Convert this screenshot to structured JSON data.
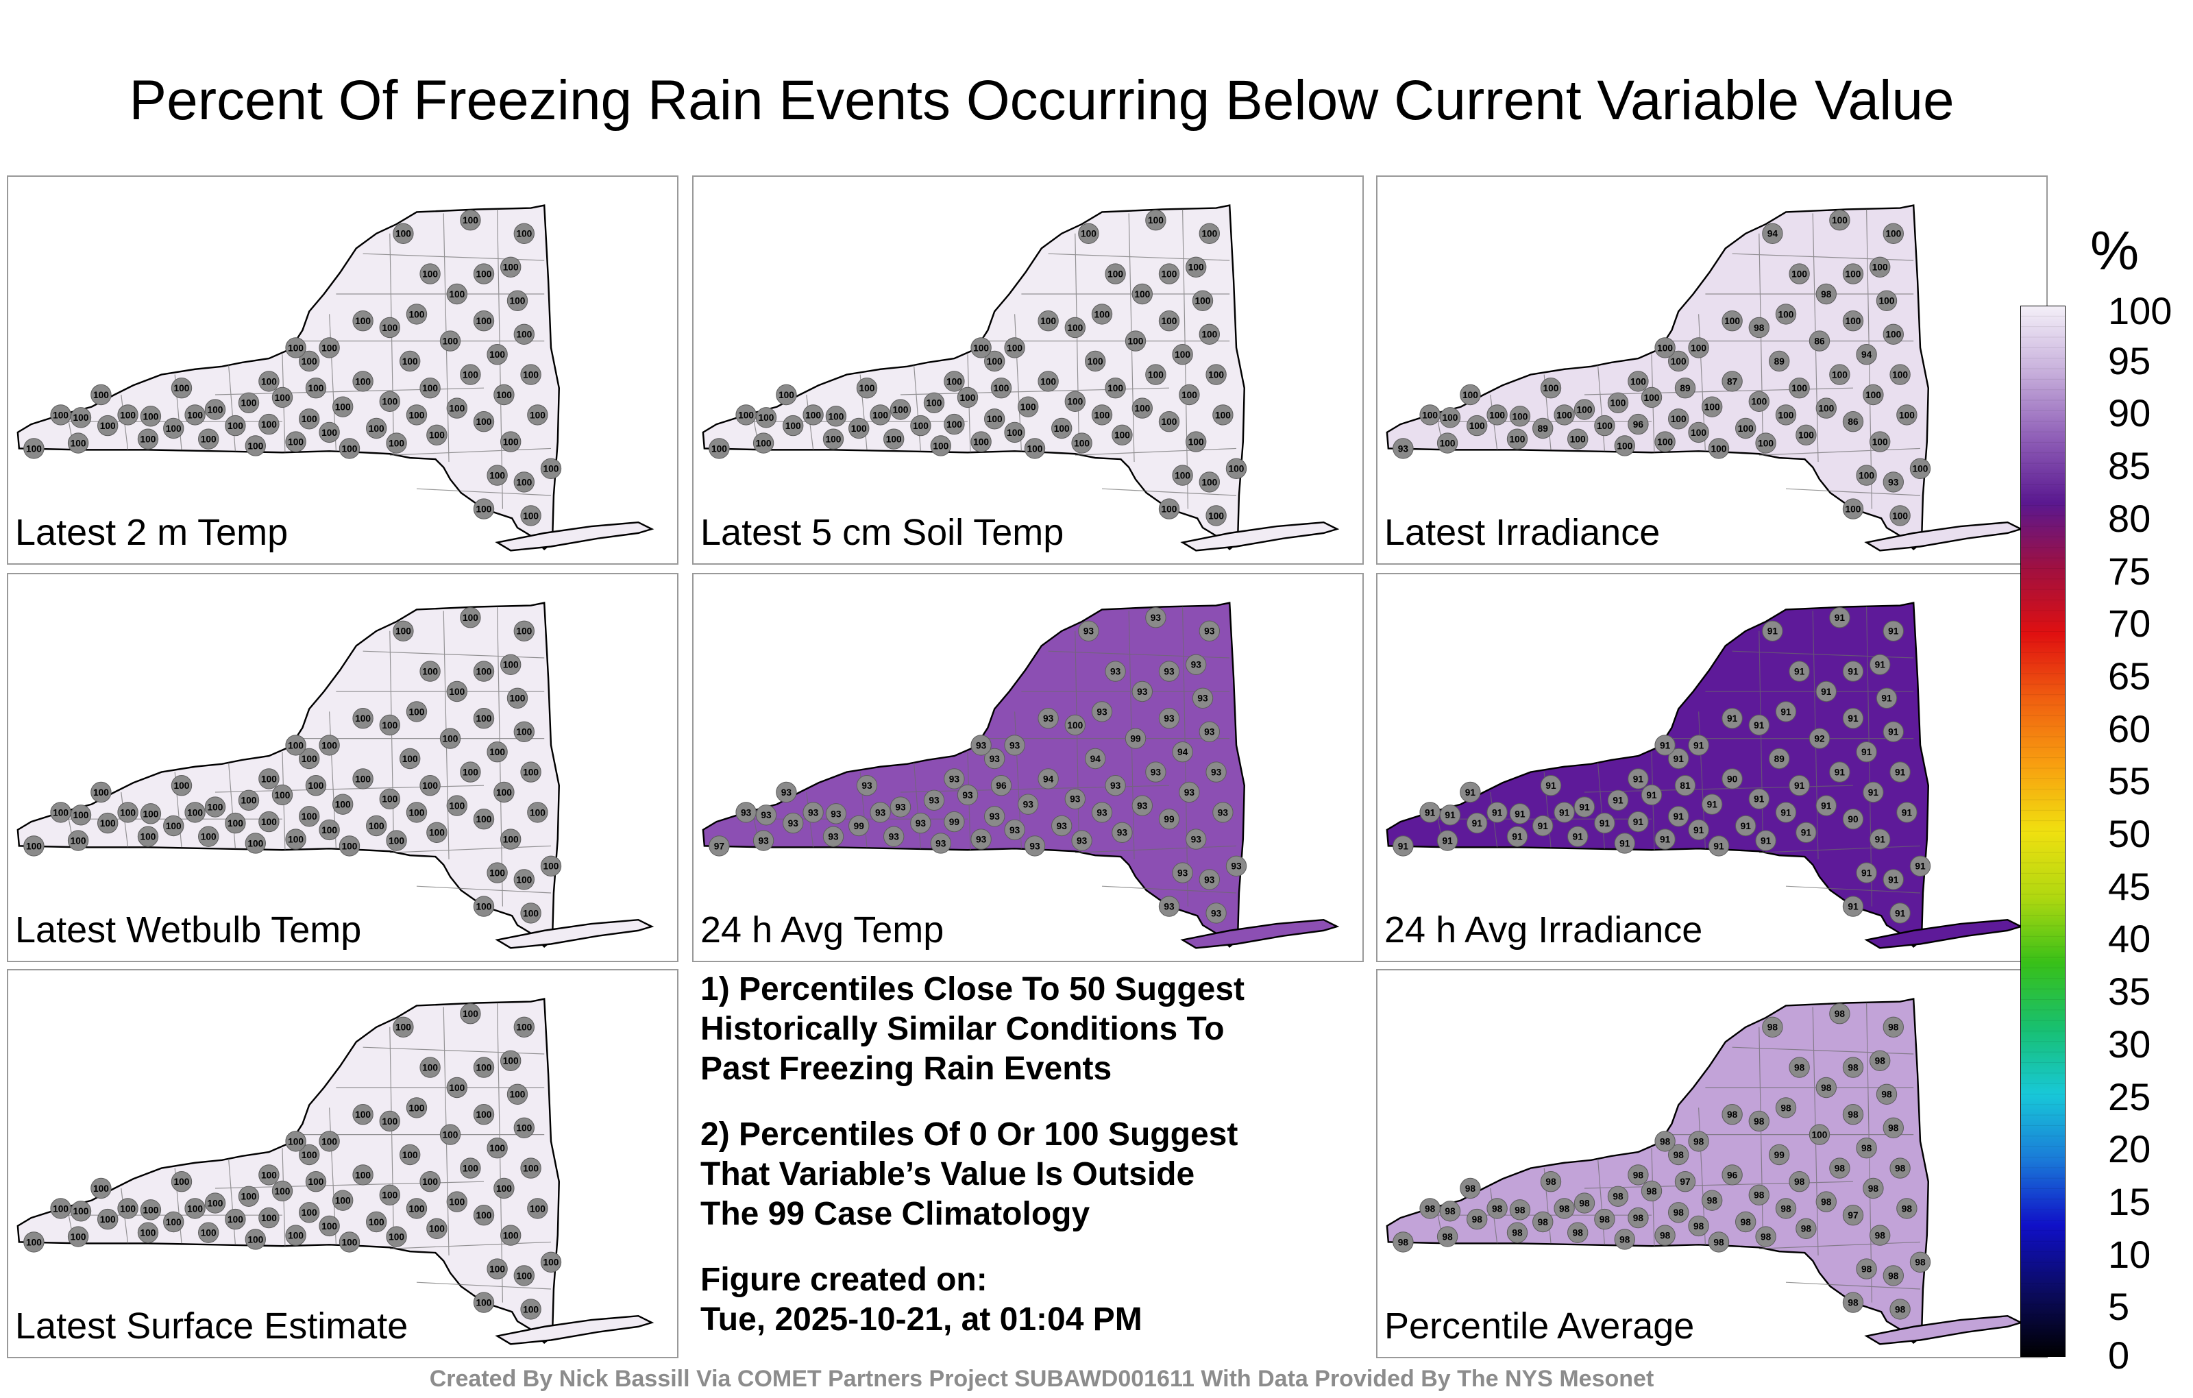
{
  "title": "Percent Of Freezing Rain Events Occurring Below Current Variable Value",
  "panels": [
    {
      "label": "Latest 2 m Temp",
      "fill": "#f1ecf4",
      "station_value": "100",
      "hotspots": []
    },
    {
      "label": "Latest 5 cm Soil Temp",
      "fill": "#f1ecf4",
      "station_value": "100",
      "hotspots": []
    },
    {
      "label": "Latest Irradiance",
      "fill": "#e9dfef",
      "station_value": "100",
      "hotspots": [
        "89",
        "87",
        "89",
        "86",
        "86",
        "94",
        "93",
        "89",
        "96",
        "98",
        "94",
        "93",
        "98"
      ]
    },
    {
      "label": "Latest Wetbulb Temp",
      "fill": "#f1ecf4",
      "station_value": "100",
      "hotspots": []
    },
    {
      "label": "24 h Avg Temp",
      "fill": "#8c4fb3",
      "station_value": "93",
      "hotspots": [
        "96",
        "94",
        "94",
        "99",
        "99",
        "94",
        "97",
        "99",
        "99",
        "100"
      ]
    },
    {
      "label": "24 h Avg Irradiance",
      "fill": "#5e1a99",
      "station_value": "91",
      "hotspots": [
        "81",
        "90",
        "89",
        "92",
        "90"
      ]
    },
    {
      "label": "Latest Surface Estimate",
      "fill": "#f1ecf4",
      "station_value": "100",
      "hotspots": []
    },
    {
      "label": "Percentile Average",
      "fill": "#c2a3d8",
      "station_value": "98",
      "hotspots": [
        "97",
        "96",
        "99",
        "100",
        "97"
      ]
    }
  ],
  "notes": [
    "1) Percentiles Close To 50 Suggest\nHistorically Similar Conditions To\nPast Freezing Rain Events",
    "2) Percentiles Of 0 Or 100 Suggest\nThat Variable’s Value Is Outside\nThe 99 Case Climatology",
    "Figure created on:\nTue, 2025-10-21, at 01:04 PM"
  ],
  "credit": "Created By Nick Bassill Via COMET Partners Project SUBAWD001611 With Data Provided By The NYS Mesonet",
  "colorbar": {
    "unit": "%",
    "ticks": [
      "100",
      "95",
      "90",
      "85",
      "80",
      "75",
      "70",
      "65",
      "60",
      "55",
      "50",
      "45",
      "40",
      "35",
      "30",
      "25",
      "20",
      "15",
      "10",
      "5",
      "0"
    ],
    "min": 0,
    "max": 100,
    "stops": [
      "#000000",
      "#0b0b60",
      "#1010c8",
      "#1a7ad8",
      "#18c8d8",
      "#18c070",
      "#38c018",
      "#b0d810",
      "#f0e010",
      "#f8a010",
      "#f06010",
      "#e01010",
      "#a01040",
      "#5a1890",
      "#9060b8",
      "#c8b0dc",
      "#f4f0f8"
    ]
  }
}
